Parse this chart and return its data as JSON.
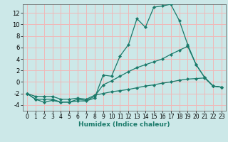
{
  "title": "",
  "xlabel": "Humidex (Indice chaleur)",
  "bg_color": "#cce8e8",
  "grid_color": "#f0b8b8",
  "line_color": "#1a7a6a",
  "xlim": [
    -0.5,
    23.5
  ],
  "ylim": [
    -5.0,
    13.5
  ],
  "xticks": [
    0,
    1,
    2,
    3,
    4,
    5,
    6,
    7,
    8,
    9,
    10,
    11,
    12,
    13,
    14,
    15,
    16,
    17,
    18,
    19,
    20,
    21,
    22,
    23
  ],
  "yticks": [
    -4,
    -2,
    0,
    2,
    4,
    6,
    8,
    10,
    12
  ],
  "series1": [
    -2.0,
    -3.0,
    -3.5,
    -3.2,
    -3.5,
    -3.5,
    -3.3,
    -3.3,
    -2.8,
    1.2,
    1.0,
    4.5,
    6.5,
    11.0,
    9.5,
    13.0,
    13.2,
    13.5,
    10.7,
    6.5,
    3.0,
    0.8,
    -0.7,
    -0.9
  ],
  "series2": [
    -2.0,
    -3.0,
    -3.0,
    -3.0,
    -3.5,
    -3.5,
    -3.0,
    -3.2,
    -2.5,
    -0.5,
    0.2,
    1.0,
    1.8,
    2.5,
    3.0,
    3.5,
    4.0,
    4.8,
    5.5,
    6.2,
    3.0,
    0.8,
    -0.7,
    -0.9
  ],
  "series3": [
    -2.0,
    -2.5,
    -2.5,
    -2.5,
    -3.0,
    -3.0,
    -2.8,
    -3.0,
    -2.3,
    -2.0,
    -1.7,
    -1.5,
    -1.3,
    -1.0,
    -0.7,
    -0.5,
    -0.2,
    0.0,
    0.3,
    0.5,
    0.6,
    0.7,
    -0.7,
    -0.9
  ],
  "xlabel_fontsize": 6.5,
  "tick_fontsize": 5.5,
  "marker_size": 2.2
}
